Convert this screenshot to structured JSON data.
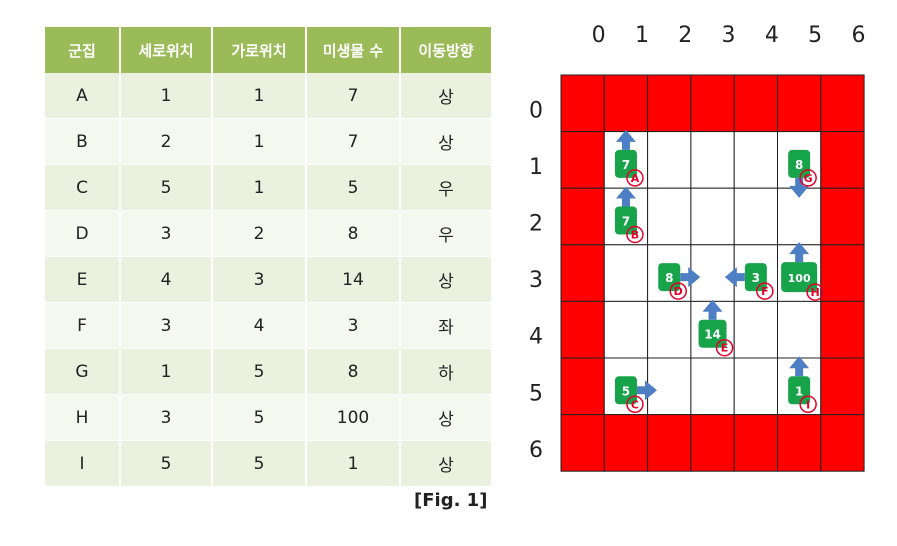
{
  "table": {
    "headers": [
      "군집",
      "세로위치",
      "가로위치",
      "미생물 수",
      "이동방향"
    ],
    "rows": [
      [
        "A",
        "1",
        "1",
        "7",
        "상"
      ],
      [
        "B",
        "2",
        "1",
        "7",
        "상"
      ],
      [
        "C",
        "5",
        "1",
        "5",
        "우"
      ],
      [
        "D",
        "3",
        "2",
        "8",
        "우"
      ],
      [
        "E",
        "4",
        "3",
        "14",
        "상"
      ],
      [
        "F",
        "3",
        "4",
        "3",
        "좌"
      ],
      [
        "G",
        "1",
        "5",
        "8",
        "하"
      ],
      [
        "H",
        "3",
        "5",
        "100",
        "상"
      ],
      [
        "I",
        "5",
        "5",
        "1",
        "상"
      ]
    ]
  },
  "figure": {
    "caption": "[Fig. 1]",
    "size": 7,
    "column_labels": [
      "0",
      "1",
      "2",
      "3",
      "4",
      "5",
      "6"
    ],
    "row_labels": [
      "0",
      "1",
      "2",
      "3",
      "4",
      "5",
      "6"
    ],
    "border_color": "#ff0000",
    "colony_color": "#17a34a",
    "arrow_color": "#4e7fc4",
    "id_color": "#e4002b",
    "colonies": [
      {
        "id": "A",
        "row": 1,
        "col": 1,
        "count": "7",
        "dir": "up"
      },
      {
        "id": "B",
        "row": 2,
        "col": 1,
        "count": "7",
        "dir": "up"
      },
      {
        "id": "C",
        "row": 5,
        "col": 1,
        "count": "5",
        "dir": "right"
      },
      {
        "id": "D",
        "row": 3,
        "col": 2,
        "count": "8",
        "dir": "right"
      },
      {
        "id": "E",
        "row": 4,
        "col": 3,
        "count": "14",
        "dir": "up"
      },
      {
        "id": "F",
        "row": 3,
        "col": 4,
        "count": "3",
        "dir": "left"
      },
      {
        "id": "G",
        "row": 1,
        "col": 5,
        "count": "8",
        "dir": "down"
      },
      {
        "id": "H",
        "row": 3,
        "col": 5,
        "count": "100",
        "dir": "up"
      },
      {
        "id": "I",
        "row": 5,
        "col": 5,
        "count": "1",
        "dir": "up"
      }
    ]
  }
}
